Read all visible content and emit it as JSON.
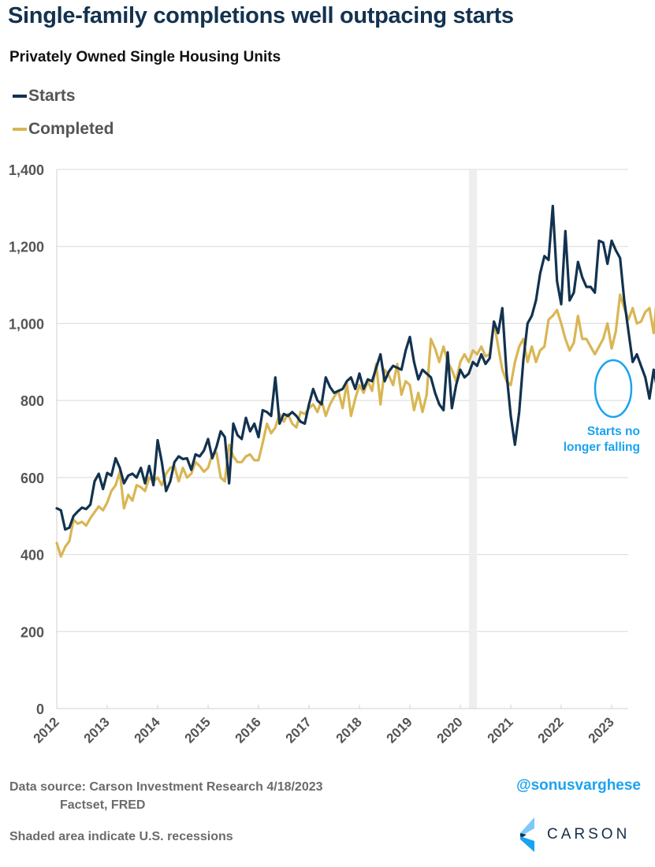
{
  "header": {
    "title": "Single-family completions well outpacing starts",
    "subtitle": "Privately Owned Single Housing Units"
  },
  "legend": [
    {
      "label": "Starts",
      "color": "#12324f"
    },
    {
      "label": "Completed",
      "color": "#d9b654"
    }
  ],
  "annotation": {
    "line1": "Starts no",
    "line2": "longer falling",
    "color": "#1aa3f0"
  },
  "footer": {
    "source_line1": "Data source: Carson Investment Research  4/18/2023",
    "source_line2": "Factset, FRED",
    "recession_note": "Shaded area indicate U.S. recessions",
    "handle": "@sonusvarghese",
    "logo_text": "CARSON"
  },
  "chart_data": {
    "type": "line",
    "title": "Single-family completions well outpacing starts",
    "subtitle": "Privately Owned Single Housing Units",
    "xlabel": "",
    "ylabel": "",
    "x_start": "2012-01",
    "x_frequency": "monthly",
    "xlim": [
      2012.0,
      2023.38
    ],
    "ylim": [
      0,
      1400
    ],
    "y_ticks": [
      0,
      200,
      400,
      600,
      800,
      1000,
      1200,
      1400
    ],
    "y_tick_labels": [
      "0",
      "200",
      "400",
      "600",
      "800",
      "1,000",
      "1,200",
      "1,400"
    ],
    "x_ticks": [
      2012,
      2013,
      2014,
      2015,
      2016,
      2017,
      2018,
      2019,
      2020,
      2021,
      2022,
      2023
    ],
    "x_tick_labels": [
      "2012",
      "2013",
      "2014",
      "2015",
      "2016",
      "2017",
      "2018",
      "2019",
      "2020",
      "2021",
      "2022",
      "2023"
    ],
    "grid": true,
    "legend_position": "top-left",
    "recessions": [
      {
        "start": 2020.17,
        "end": 2020.33
      }
    ],
    "series": [
      {
        "name": "Starts",
        "color": "#12324f",
        "values": [
          520,
          515,
          465,
          470,
          500,
          512,
          522,
          518,
          530,
          590,
          610,
          570,
          612,
          605,
          650,
          625,
          585,
          605,
          610,
          600,
          625,
          585,
          630,
          580,
          697,
          640,
          565,
          590,
          640,
          655,
          648,
          650,
          620,
          660,
          655,
          670,
          700,
          650,
          680,
          720,
          705,
          585,
          740,
          710,
          700,
          755,
          720,
          740,
          705,
          775,
          770,
          760,
          860,
          740,
          765,
          760,
          770,
          760,
          745,
          740,
          790,
          830,
          800,
          790,
          860,
          835,
          820,
          825,
          830,
          850,
          860,
          830,
          870,
          830,
          855,
          850,
          885,
          920,
          850,
          875,
          890,
          885,
          880,
          930,
          965,
          900,
          855,
          880,
          870,
          860,
          820,
          790,
          775,
          925,
          780,
          840,
          880,
          860,
          870,
          900,
          890,
          920,
          895,
          910,
          1005,
          975,
          1040,
          870,
          760,
          685,
          770,
          905,
          1000,
          1020,
          1060,
          1130,
          1175,
          1165,
          1305,
          1110,
          1050,
          1240,
          1060,
          1080,
          1160,
          1120,
          1095,
          1095,
          1080,
          1215,
          1210,
          1155,
          1215,
          1190,
          1170,
          1060,
          980,
          900,
          920,
          890,
          860,
          805,
          880,
          820,
          840,
          860
        ]
      },
      {
        "name": "Completed",
        "color": "#d9b654",
        "values": [
          430,
          395,
          420,
          435,
          490,
          480,
          485,
          475,
          495,
          510,
          525,
          515,
          535,
          565,
          580,
          615,
          520,
          555,
          540,
          580,
          575,
          565,
          600,
          590,
          600,
          580,
          610,
          625,
          630,
          590,
          625,
          600,
          610,
          640,
          630,
          615,
          625,
          660,
          665,
          600,
          590,
          685,
          655,
          640,
          640,
          655,
          660,
          645,
          645,
          690,
          740,
          715,
          730,
          765,
          745,
          765,
          740,
          730,
          770,
          765,
          780,
          790,
          770,
          800,
          760,
          790,
          810,
          825,
          780,
          845,
          760,
          805,
          840,
          820,
          850,
          825,
          895,
          790,
          880,
          865,
          840,
          895,
          815,
          850,
          840,
          775,
          820,
          770,
          815,
          960,
          935,
          900,
          940,
          900,
          880,
          850,
          900,
          920,
          900,
          930,
          920,
          940,
          915,
          920,
          1005,
          940,
          880,
          850,
          840,
          900,
          940,
          960,
          900,
          940,
          900,
          930,
          940,
          1010,
          1020,
          1035,
          1000,
          960,
          930,
          950,
          1020,
          960,
          960,
          940,
          920,
          940,
          960,
          1000,
          935,
          980,
          1075,
          1040,
          1010,
          1040,
          1000,
          1005,
          1030,
          1040,
          975,
          1095,
          995,
          1025,
          1025,
          1050
        ]
      }
    ]
  }
}
